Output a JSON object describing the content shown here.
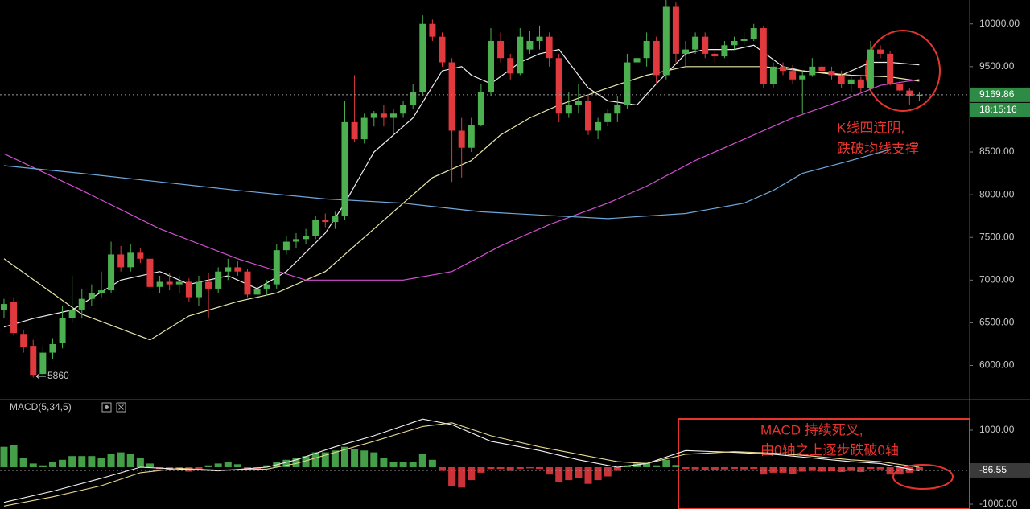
{
  "chart_data": [
    {
      "type": "candlestick",
      "up_color": "#4caf50",
      "down_color": "#e0393e",
      "xlim": [
        -0.41,
        99.17
      ],
      "ylim": [
        5600,
        10280
      ],
      "yticks": [
        {
          "value": 6000,
          "label": "6000.00"
        },
        {
          "value": 6500,
          "label": "6500.00"
        },
        {
          "value": 7000,
          "label": "7000.00"
        },
        {
          "value": 7500,
          "label": "7500.00"
        },
        {
          "value": 8000,
          "label": "8000.00"
        },
        {
          "value": 8500,
          "label": "8500.00"
        },
        {
          "value": 9000,
          "label": "9000.00"
        },
        {
          "value": 9500,
          "label": "9500.00"
        },
        {
          "value": 10000,
          "label": "10000.00"
        }
      ],
      "open": [
        6650,
        6740,
        6370,
        6230,
        5900,
        6150,
        6260,
        6560,
        6650,
        6780,
        6850,
        6880,
        7300,
        7150,
        7320,
        7250,
        6920,
        6980,
        6950,
        6980,
        6800,
        6980,
        6900,
        7100,
        7150,
        7100,
        6830,
        6900,
        6950,
        7350,
        7450,
        7480,
        7520,
        7700,
        7680,
        7750,
        8850,
        8650,
        8900,
        8950,
        8900,
        8950,
        9050,
        9200,
        10000,
        9850,
        9550,
        8750,
        8550,
        8820,
        9200,
        9800,
        9600,
        9420,
        9700,
        9800,
        9850,
        9600,
        8950,
        9050,
        9100,
        8750,
        8850,
        8950,
        9050,
        9550,
        9600,
        9800,
        9400,
        10200,
        9650,
        9700,
        9850,
        9650,
        9620,
        9750,
        9800,
        9820,
        9950,
        9300,
        9500,
        9450,
        9350,
        9400,
        9500,
        9450,
        9400,
        9300,
        9350,
        9250,
        9700,
        9650,
        9300,
        9220,
        9150
      ],
      "high": [
        6780,
        6800,
        6420,
        6300,
        6230,
        6320,
        6700,
        7050,
        6900,
        6950,
        7100,
        7450,
        7400,
        7420,
        7380,
        7300,
        7050,
        7080,
        7050,
        7020,
        7050,
        7080,
        7150,
        7250,
        7220,
        7130,
        6950,
        7000,
        7420,
        7520,
        7550,
        7600,
        7750,
        7780,
        7800,
        9100,
        9400,
        8950,
        8980,
        9050,
        9000,
        9100,
        9300,
        10100,
        10050,
        9900,
        9600,
        8900,
        8900,
        9300,
        9950,
        9900,
        9650,
        9950,
        9920,
        9980,
        9900,
        9650,
        9200,
        9300,
        9150,
        8900,
        9000,
        9150,
        9650,
        9700,
        9900,
        9850,
        10300,
        10250,
        9800,
        9900,
        9900,
        9700,
        9800,
        9850,
        9900,
        10000,
        9980,
        9550,
        9550,
        9520,
        9450,
        9600,
        9550,
        9500,
        9450,
        9400,
        9380,
        9800,
        9750,
        9680,
        9350,
        9250,
        9200
      ],
      "low": [
        6560,
        6350,
        6150,
        5860,
        5880,
        6080,
        6200,
        6500,
        6550,
        6700,
        6800,
        6850,
        7100,
        7100,
        7200,
        6850,
        6850,
        6880,
        6850,
        6750,
        6700,
        6550,
        6850,
        7000,
        7050,
        6800,
        6780,
        6820,
        6900,
        7300,
        7380,
        7420,
        7480,
        7620,
        7600,
        7700,
        8620,
        8600,
        8800,
        8800,
        8700,
        8900,
        9000,
        9150,
        9800,
        9500,
        8150,
        8200,
        8500,
        8800,
        9150,
        9550,
        9350,
        9400,
        9650,
        9700,
        9500,
        8850,
        8900,
        8950,
        8700,
        8650,
        8800,
        8850,
        9000,
        9400,
        9500,
        9300,
        9350,
        9550,
        9500,
        9650,
        9600,
        9550,
        9600,
        9700,
        9750,
        9800,
        9250,
        9250,
        9400,
        9300,
        8950,
        9380,
        9400,
        9350,
        9250,
        9200,
        9200,
        9220,
        9600,
        9280,
        9180,
        9050,
        9100
      ],
      "close": [
        6720,
        6380,
        6220,
        5890,
        6150,
        6250,
        6560,
        6650,
        6780,
        6850,
        6880,
        7300,
        7150,
        7320,
        7250,
        6920,
        6980,
        6950,
        6980,
        6800,
        6980,
        6900,
        7100,
        7150,
        7100,
        6830,
        6900,
        6950,
        7350,
        7450,
        7480,
        7520,
        7700,
        7680,
        7750,
        8850,
        8650,
        8900,
        8950,
        8900,
        8950,
        9050,
        9200,
        10000,
        9850,
        9550,
        8750,
        8550,
        8820,
        9200,
        9800,
        9600,
        9420,
        9850,
        9800,
        9850,
        9600,
        8950,
        9050,
        9100,
        8750,
        8850,
        8950,
        9050,
        9550,
        9600,
        9800,
        9400,
        10200,
        9650,
        9700,
        9850,
        9650,
        9620,
        9750,
        9800,
        9820,
        9950,
        9300,
        9500,
        9450,
        9350,
        9400,
        9500,
        9450,
        9400,
        9300,
        9350,
        9250,
        9700,
        9650,
        9300,
        9220,
        9150,
        9169.86
      ],
      "ma_series": [
        {
          "color": "#eeeeee",
          "x": [
            0,
            3,
            7,
            12,
            16,
            19,
            23,
            26,
            29,
            33,
            35,
            38,
            42,
            45,
            47,
            48,
            50,
            53,
            55,
            57,
            60,
            62,
            65,
            67,
            70,
            72,
            75,
            77,
            80,
            82,
            86,
            89,
            91,
            94
          ],
          "values": [
            6450,
            6550,
            6650,
            7000,
            7100,
            6950,
            7050,
            6900,
            7100,
            7550,
            7900,
            8500,
            8900,
            9450,
            9500,
            9400,
            9300,
            9550,
            9650,
            9700,
            9250,
            9100,
            9050,
            9300,
            9650,
            9700,
            9700,
            9750,
            9500,
            9450,
            9400,
            9550,
            9550,
            9520
          ]
        },
        {
          "color": "#e8e6a8",
          "x": [
            0,
            8,
            15,
            19,
            24,
            28,
            33,
            37,
            41,
            44,
            48,
            51,
            54,
            57,
            62,
            66,
            70,
            74,
            78,
            82,
            87,
            91,
            94
          ],
          "values": [
            7250,
            6600,
            6300,
            6580,
            6750,
            6850,
            7100,
            7500,
            7900,
            8200,
            8400,
            8700,
            8900,
            9050,
            9250,
            9400,
            9500,
            9500,
            9500,
            9450,
            9400,
            9380,
            9330
          ]
        },
        {
          "color": "#d24fd2",
          "x": [
            0,
            8,
            16,
            24,
            31,
            41,
            46,
            51,
            56,
            62,
            66,
            71,
            76,
            81,
            86,
            90,
            94
          ],
          "values": [
            8480,
            8050,
            7600,
            7250,
            7000,
            7000,
            7100,
            7400,
            7650,
            7900,
            8100,
            8400,
            8650,
            8900,
            9100,
            9280,
            9350
          ]
        },
        {
          "color": "#6fa8dc",
          "x": [
            0,
            8,
            16,
            24,
            33,
            41,
            49,
            57,
            62,
            70,
            76,
            79,
            82,
            87,
            91
          ],
          "values": [
            8340,
            8250,
            8150,
            8050,
            7950,
            7900,
            7800,
            7750,
            7720,
            7780,
            7900,
            8050,
            8250,
            8400,
            8530
          ]
        }
      ],
      "countdown": "18:15:16",
      "annotation": [
        "K线四连阴,",
        "跌破均线支撑"
      ]
    },
    {
      "type": "macd",
      "title": "MACD(5,34,5)",
      "up_color": "#4caf50",
      "down_color": "#e0393e",
      "xlim": [
        -0.41,
        99.17
      ],
      "ylim": [
        -1130,
        1760
      ],
      "yticks": [
        {
          "value": 1000,
          "label": "1000.00"
        },
        {
          "value": -1000,
          "label": "-1000.00"
        }
      ],
      "values": [
        550,
        600,
        250,
        100,
        50,
        150,
        200,
        300,
        300,
        300,
        250,
        350,
        400,
        350,
        250,
        100,
        -50,
        -80,
        -80,
        -120,
        -80,
        50,
        100,
        150,
        80,
        -80,
        -50,
        50,
        150,
        200,
        250,
        300,
        400,
        400,
        450,
        550,
        500,
        450,
        400,
        250,
        150,
        150,
        150,
        350,
        200,
        -100,
        -500,
        -550,
        -350,
        -150,
        -50,
        -50,
        -100,
        -50,
        -30,
        -50,
        -200,
        -400,
        -350,
        -300,
        -450,
        -350,
        -250,
        -100,
        50,
        100,
        120,
        50,
        200,
        60,
        -50,
        -60,
        -80,
        -70,
        -60,
        -50,
        -60,
        -50,
        -200,
        -150,
        -150,
        -180,
        -120,
        -100,
        -120,
        -110,
        -130,
        -100,
        -130,
        -50,
        -60,
        -200,
        -200,
        -150,
        -86.55
      ],
      "series": [
        {
          "color": "#f2f2f2",
          "x": [
            0,
            5,
            10,
            14,
            18,
            22,
            27,
            30,
            34,
            38,
            43,
            46,
            50,
            55,
            59,
            63,
            66,
            70,
            75,
            79,
            83,
            87,
            90,
            94
          ],
          "values": [
            -950,
            -650,
            -300,
            0,
            -50,
            -100,
            0,
            200,
            550,
            850,
            1300,
            1150,
            700,
            450,
            200,
            0,
            100,
            450,
            400,
            350,
            250,
            150,
            100,
            -100
          ]
        },
        {
          "color": "#e8d890",
          "x": [
            0,
            5,
            10,
            14,
            18,
            22,
            27,
            30,
            34,
            38,
            43,
            46,
            50,
            55,
            59,
            63,
            66,
            70,
            75,
            79,
            83,
            87,
            90,
            94
          ],
          "values": [
            -1050,
            -800,
            -500,
            -150,
            -30,
            -80,
            -50,
            100,
            400,
            700,
            1100,
            1200,
            850,
            550,
            350,
            150,
            100,
            350,
            420,
            380,
            300,
            200,
            150,
            0
          ]
        }
      ],
      "annotation": [
        "MACD 持续死叉,",
        "由0轴之上逐步跌破0轴"
      ]
    }
  ]
}
